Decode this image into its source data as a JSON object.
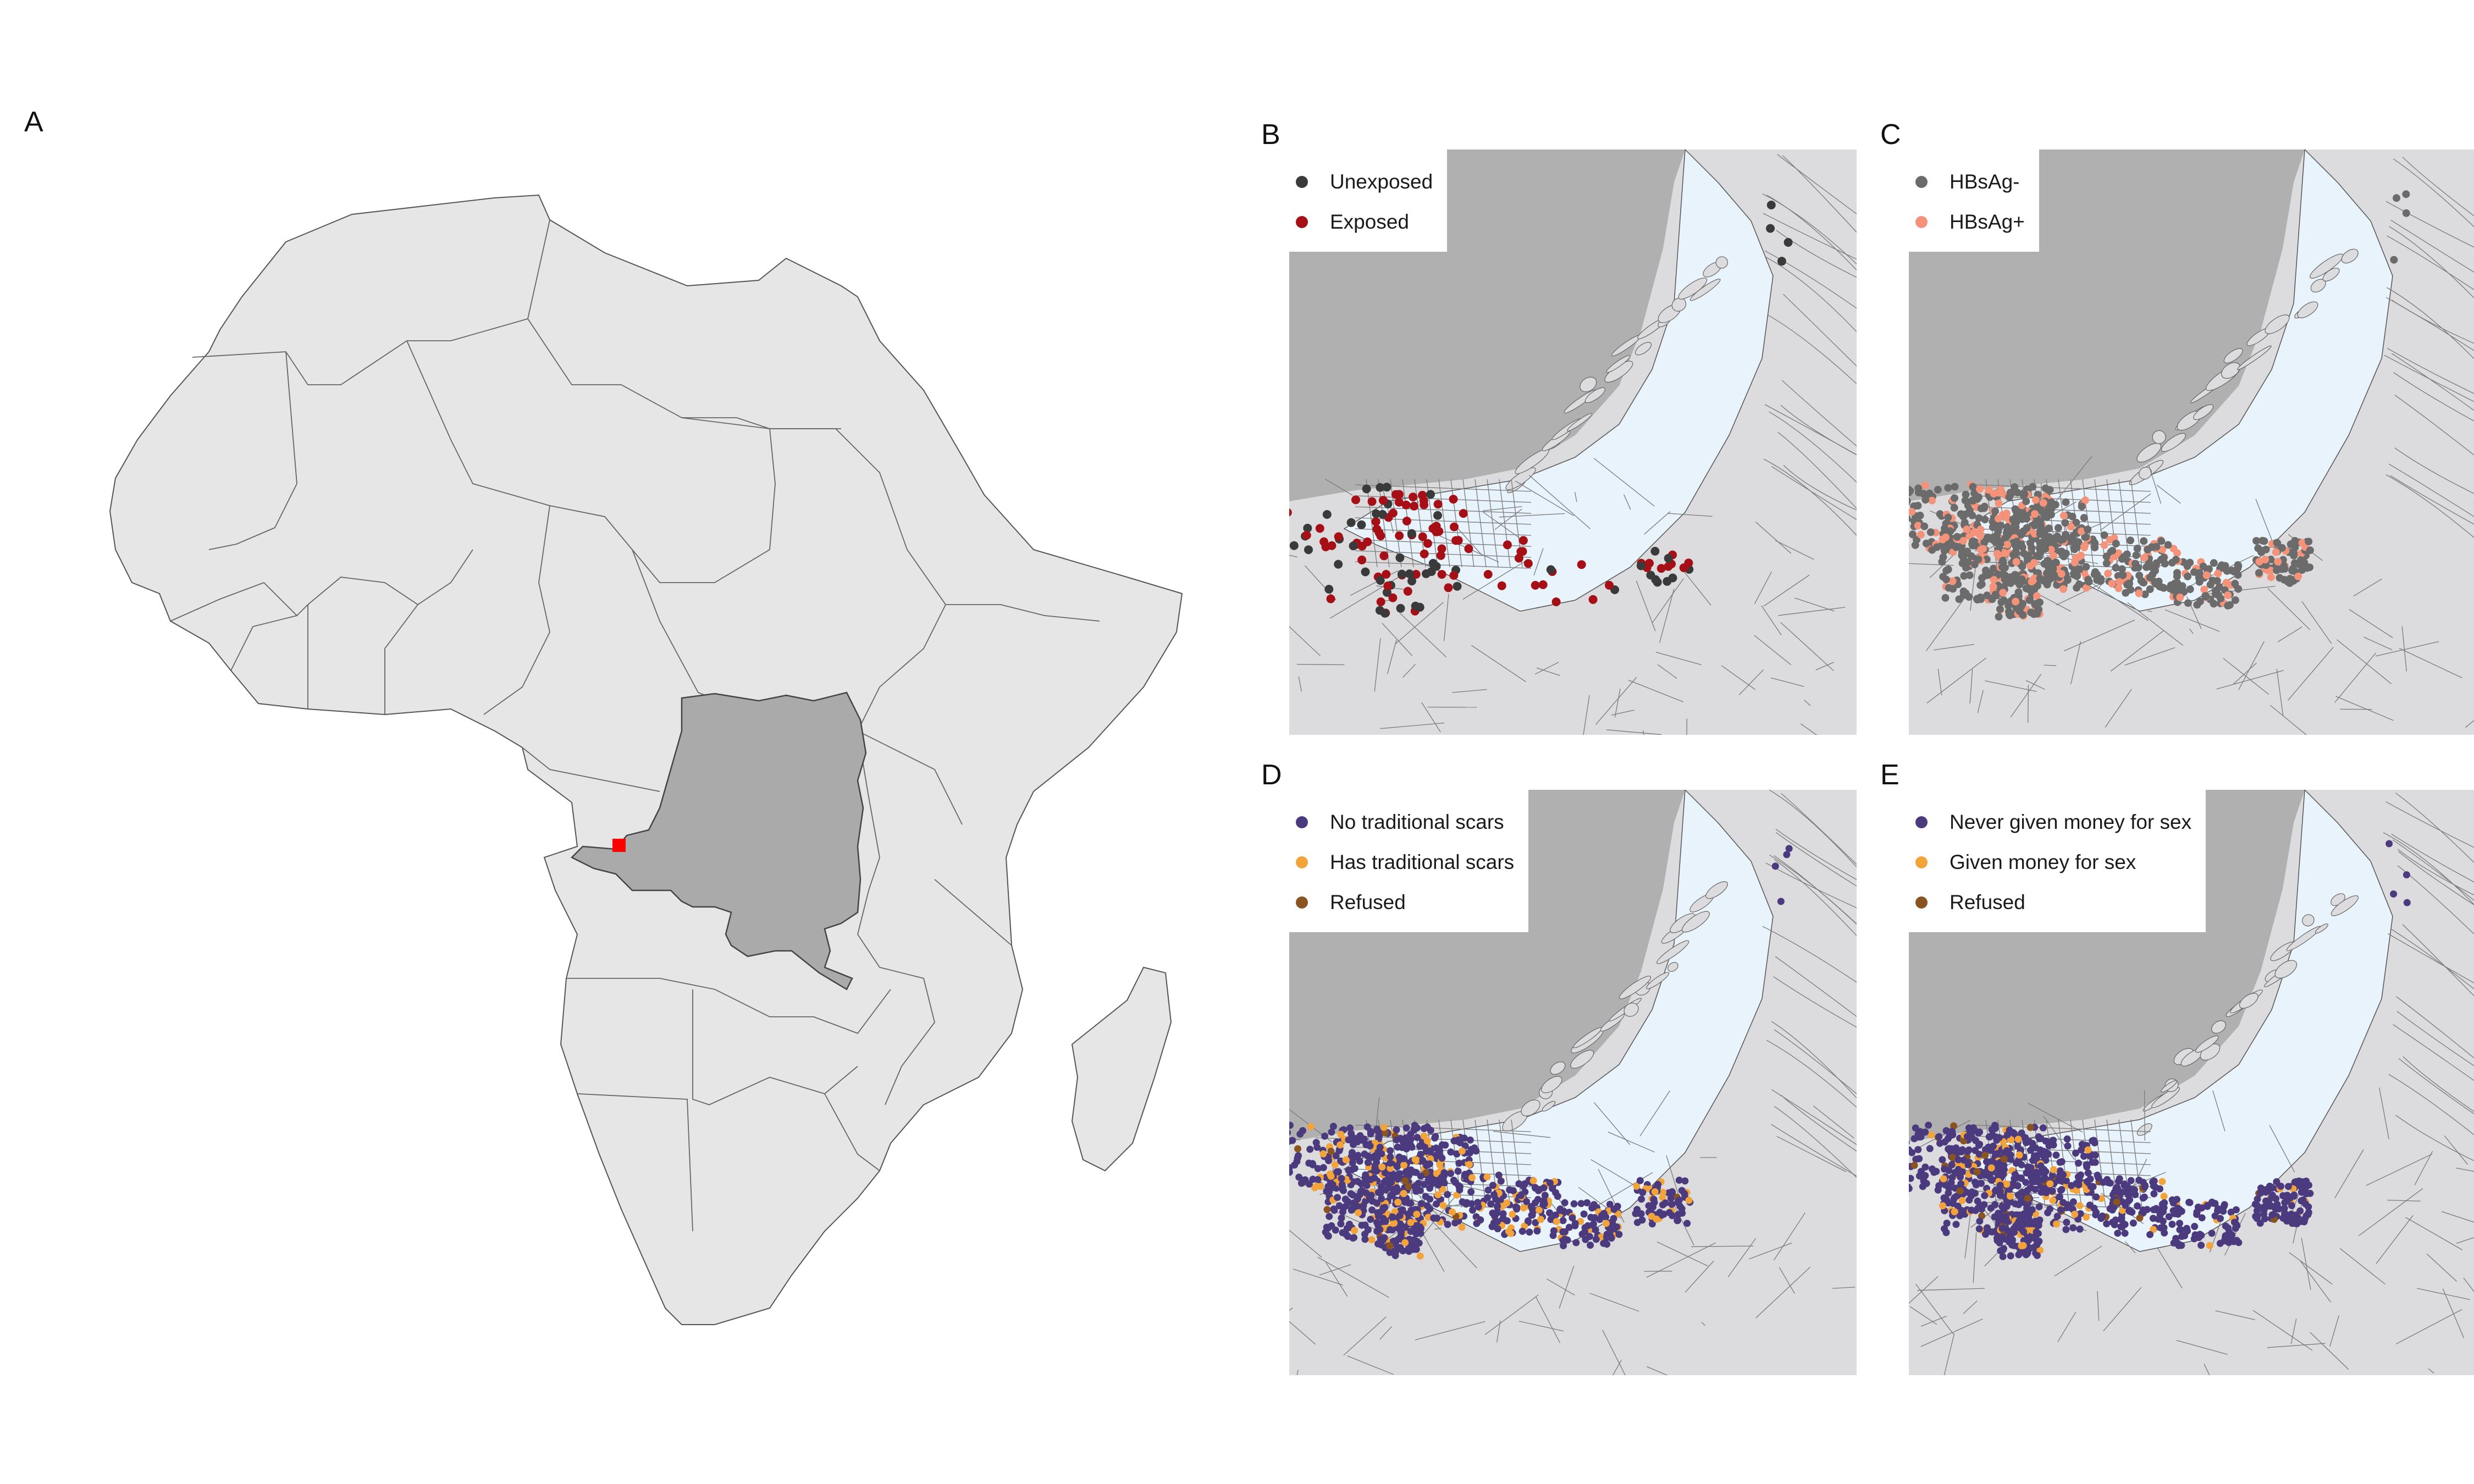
{
  "panels": {
    "A": {
      "label": "A"
    },
    "B": {
      "label": "B",
      "legend": [
        {
          "label": "Unexposed",
          "color": "#3a3a3a"
        },
        {
          "label": "Exposed",
          "color": "#a50f15"
        }
      ]
    },
    "C": {
      "label": "C",
      "legend": [
        {
          "label": "HBsAg-",
          "color": "#6b6b6b"
        },
        {
          "label": "HBsAg+",
          "color": "#f4937a"
        }
      ]
    },
    "D": {
      "label": "D",
      "legend": [
        {
          "label": "No traditional scars",
          "color": "#4b3a7e"
        },
        {
          "label": "Has traditional scars",
          "color": "#f2a33a"
        },
        {
          "label": "Refused",
          "color": "#8a5420"
        }
      ]
    },
    "E": {
      "label": "E",
      "legend": [
        {
          "label": "Never given money for sex",
          "color": "#4b3a7e"
        },
        {
          "label": "Given money for sex",
          "color": "#f2a33a"
        },
        {
          "label": "Refused",
          "color": "#8a5420"
        }
      ]
    }
  },
  "colors": {
    "land": "#e6e6e6",
    "highlighted_country": "#aaaaaa",
    "study_site_marker": "#ff0000",
    "river": "#e8f3fb",
    "other_country": "#b0b0b0",
    "city_land": "#dcdcde"
  }
}
